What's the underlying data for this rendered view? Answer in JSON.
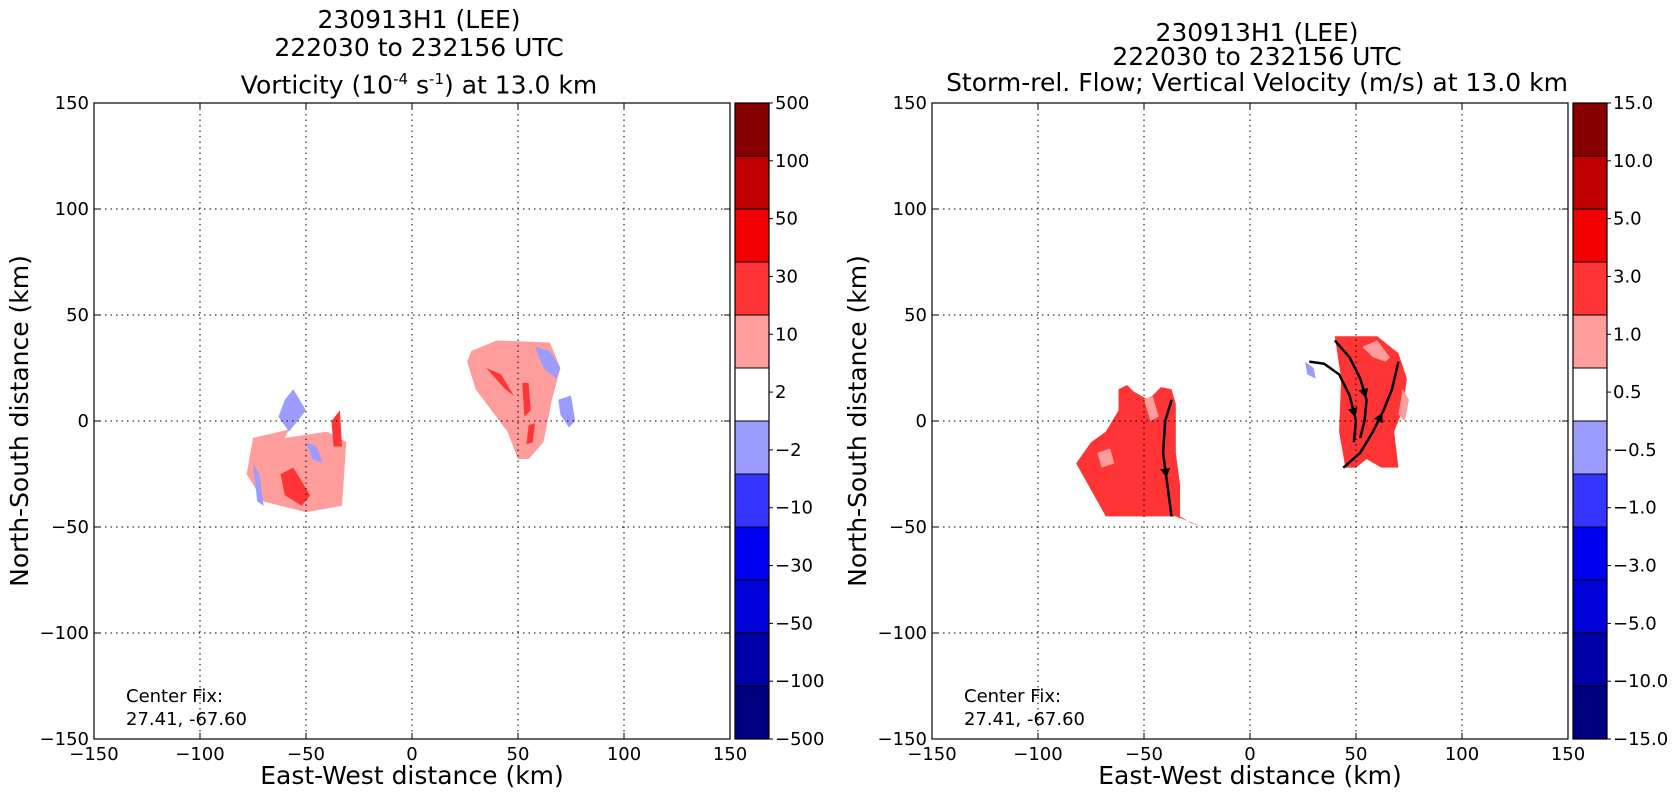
{
  "colors": {
    "vorticity_levels": [
      "#000080",
      "#0000a8",
      "#0000d8",
      "#0000f0",
      "#3535ff",
      "#9c9cff",
      "#ffffff",
      "#ff9c9c",
      "#ff3535",
      "#f00000",
      "#c00000",
      "#880000"
    ],
    "velocity_levels": [
      "#000080",
      "#0000a8",
      "#0000d8",
      "#0000f0",
      "#3535ff",
      "#9c9cff",
      "#ffffff",
      "#ff9c9c",
      "#ff3535",
      "#f00000",
      "#c00000",
      "#880000"
    ]
  },
  "chart_data": [
    {
      "type": "heatmap",
      "title_line1": "230913H1 (LEE)",
      "title_line2": "222030 to 232156 UTC",
      "title_line3_pre": "Vorticity (10",
      "title_line3_sup1": "-4",
      "title_line3_mid": " s",
      "title_line3_sup2": "-1",
      "title_line3_post": ") at 13.0 km",
      "xlabel": "East-West distance (km)",
      "ylabel": "North-South distance (km)",
      "xlim": [
        -150,
        150
      ],
      "ylim": [
        -150,
        150
      ],
      "x_ticks": [
        -150,
        -100,
        -50,
        0,
        50,
        100,
        150
      ],
      "y_ticks": [
        -150,
        -100,
        -50,
        0,
        50,
        100,
        150
      ],
      "x_tick_labels": [
        "−150",
        "−100",
        "−50",
        "0",
        "50",
        "100",
        "150"
      ],
      "y_tick_labels": [
        "−150",
        "−100",
        "−50",
        "0",
        "50",
        "100",
        "150"
      ],
      "grid": true,
      "annotation": [
        "Center Fix:",
        "27.41, -67.60"
      ],
      "colorbar_labels": [
        "500",
        "100",
        "50",
        "30",
        "10",
        "2",
        "−2",
        "−10",
        "−30",
        "−50",
        "−100",
        "−500"
      ],
      "regions": [
        {
          "level": "+2 to +10",
          "x": [
            -60,
            -40,
            -31,
            -33,
            -50,
            -70,
            -78,
            -75,
            -58
          ],
          "y": [
            -8,
            -5,
            -10,
            -40,
            -43,
            -38,
            -25,
            -8,
            -4
          ]
        },
        {
          "level": "+10 to +30",
          "x": [
            -62,
            -56,
            -48,
            -52,
            -60
          ],
          "y": [
            -25,
            -22,
            -35,
            -40,
            -35
          ]
        },
        {
          "level": "+10 to +30",
          "x": [
            -38,
            -34,
            -33,
            -37
          ],
          "y": [
            0,
            5,
            -12,
            -12
          ]
        },
        {
          "level": "-2 to -10",
          "x": [
            -60,
            -56,
            -50,
            -58,
            -63
          ],
          "y": [
            10,
            15,
            5,
            -5,
            2
          ]
        },
        {
          "level": "-2 to -10",
          "x": [
            -75,
            -72,
            -70,
            -73
          ],
          "y": [
            -20,
            -25,
            -40,
            -38
          ]
        },
        {
          "level": "-2 to -10",
          "x": [
            -50,
            -45,
            -42,
            -47
          ],
          "y": [
            -10,
            -12,
            -20,
            -18
          ]
        },
        {
          "level": "+2 to +10",
          "x": [
            28,
            40,
            65,
            70,
            66,
            62,
            55,
            50,
            45,
            30,
            26
          ],
          "y": [
            33,
            38,
            37,
            25,
            10,
            -10,
            -18,
            -18,
            -5,
            15,
            28
          ]
        },
        {
          "level": "+10 to +30",
          "x": [
            35,
            42,
            48,
            44
          ],
          "y": [
            25,
            22,
            12,
            15
          ]
        },
        {
          "level": "+10 to +30",
          "x": [
            52,
            55,
            56,
            53
          ],
          "y": [
            18,
            18,
            5,
            2
          ]
        },
        {
          "level": "+10 to +30",
          "x": [
            55,
            58,
            57,
            54
          ],
          "y": [
            -2,
            -1,
            -10,
            -11
          ]
        },
        {
          "level": "-2 to -10",
          "x": [
            58,
            65,
            70,
            68,
            62
          ],
          "y": [
            35,
            33,
            25,
            20,
            25
          ]
        },
        {
          "level": "-2 to -10",
          "x": [
            69,
            75,
            77,
            74,
            70
          ],
          "y": [
            10,
            12,
            0,
            -3,
            3
          ]
        }
      ]
    },
    {
      "type": "heatmap",
      "title_line1": "230913H1 (LEE)",
      "title_line2": "222030 to 232156 UTC",
      "title_line3": "Storm-rel. Flow; Vertical Velocity (m/s) at 13.0 km",
      "xlabel": "East-West distance (km)",
      "ylabel": "North-South distance (km)",
      "xlim": [
        -150,
        150
      ],
      "ylim": [
        -150,
        150
      ],
      "x_ticks": [
        -150,
        -100,
        -50,
        0,
        50,
        100,
        150
      ],
      "y_ticks": [
        -150,
        -100,
        -50,
        0,
        50,
        100,
        150
      ],
      "x_tick_labels": [
        "−150",
        "−100",
        "−50",
        "0",
        "50",
        "100",
        "150"
      ],
      "y_tick_labels": [
        "−150",
        "−100",
        "−50",
        "0",
        "50",
        "100",
        "150"
      ],
      "grid": true,
      "annotation": [
        "Center Fix:",
        "27.41, -67.60"
      ],
      "colorbar_labels": [
        "15.0",
        "10.0",
        "5.0",
        "3.0",
        "1.0",
        "0.5",
        "−0.5",
        "−1.0",
        "−3.0",
        "−5.0",
        "−10.0",
        "−15.0"
      ],
      "regions": [
        {
          "level": "+1.0 to +3.0",
          "x": [
            -62,
            -58,
            -55,
            -48,
            -42,
            -37,
            -35,
            -35,
            -33,
            -33,
            -28,
            -22,
            -35,
            -42,
            -58,
            -68,
            -82,
            -75,
            -68,
            -62
          ],
          "y": [
            15,
            17,
            14,
            10,
            16,
            15,
            8,
            -15,
            -30,
            -45,
            -48,
            -50,
            -45,
            -45,
            -45,
            -45,
            -20,
            -10,
            -5,
            5
          ]
        },
        {
          "level": "+0.5 to +1.0",
          "x": [
            -50,
            -46,
            -43,
            -47
          ],
          "y": [
            10,
            12,
            2,
            0
          ]
        },
        {
          "level": "+0.5 to +1.0",
          "x": [
            -72,
            -66,
            -64,
            -70
          ],
          "y": [
            -15,
            -13,
            -20,
            -22
          ]
        },
        {
          "level": "+1.0 to +3.0",
          "x": [
            40,
            60,
            70,
            74,
            72,
            68,
            70,
            62,
            55,
            50,
            45,
            42,
            43
          ],
          "y": [
            40,
            40,
            32,
            20,
            5,
            -5,
            -22,
            -22,
            -18,
            -22,
            -22,
            -5,
            20
          ]
        },
        {
          "level": "+0.5 to +1.0",
          "x": [
            53,
            60,
            66,
            64,
            58
          ],
          "y": [
            35,
            38,
            30,
            28,
            30
          ]
        },
        {
          "level": "+0.5 to +1.0",
          "x": [
            72,
            75,
            73,
            70
          ],
          "y": [
            15,
            10,
            0,
            3
          ]
        },
        {
          "level": "-0.5 to -1.0",
          "x": [
            26,
            30,
            31,
            27
          ],
          "y": [
            28,
            25,
            20,
            22
          ]
        }
      ],
      "streamlines": [
        {
          "x": [
            -37,
            -40,
            -41,
            -39,
            -37
          ],
          "y": [
            10,
            0,
            -15,
            -30,
            -45
          ],
          "arrow_at": 2
        },
        {
          "x": [
            28,
            35,
            42,
            47,
            50,
            49
          ],
          "y": [
            28,
            27,
            22,
            12,
            0,
            -10
          ],
          "arrow_at": 3
        },
        {
          "x": [
            40,
            47,
            52,
            55,
            54,
            52
          ],
          "y": [
            38,
            30,
            20,
            10,
            0,
            -8
          ],
          "arrow_at": 2
        },
        {
          "x": [
            44,
            52,
            58,
            63,
            67,
            70
          ],
          "y": [
            -22,
            -15,
            -5,
            5,
            15,
            28
          ],
          "arrow_at": 2
        }
      ]
    }
  ]
}
